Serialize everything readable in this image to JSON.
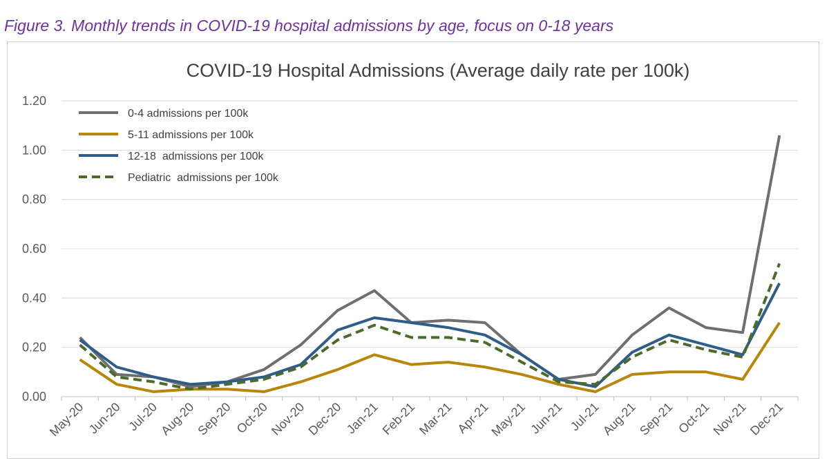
{
  "caption": "Figure 3. Monthly trends in COVID-19 hospital admissions by age, focus on 0-18 years",
  "chart_data": {
    "type": "line",
    "title": "COVID-19 Hospital Admissions (Average daily rate per 100k)",
    "xlabel": "",
    "ylabel": "",
    "ylim": [
      0,
      1.2
    ],
    "yticks": [
      "0.00",
      "0.20",
      "0.40",
      "0.60",
      "0.80",
      "1.00",
      "1.20"
    ],
    "grid": true,
    "legend_position": "top-left",
    "categories": [
      "May-20",
      "Jun-20",
      "Jul-20",
      "Aug-20",
      "Sep-20",
      "Oct-20",
      "Nov-20",
      "Dec-20",
      "Jan-21",
      "Feb-21",
      "Mar-21",
      "Apr-21",
      "May-21",
      "Jun-21",
      "Jul-21",
      "Aug-21",
      "Sep-21",
      "Oct-21",
      "Nov-21",
      "Dec-21"
    ],
    "series": [
      {
        "name": "0-4 admissions per 100k",
        "color": "#6f6f6f",
        "dashed": false,
        "values": [
          0.24,
          0.09,
          0.08,
          0.04,
          0.06,
          0.11,
          0.21,
          0.35,
          0.43,
          0.3,
          0.31,
          0.3,
          0.17,
          0.07,
          0.09,
          0.25,
          0.36,
          0.28,
          0.26,
          1.06
        ]
      },
      {
        "name": "5-11 admissions per 100k",
        "color": "#b8860b",
        "dashed": false,
        "values": [
          0.15,
          0.05,
          0.02,
          0.03,
          0.03,
          0.02,
          0.06,
          0.11,
          0.17,
          0.13,
          0.14,
          0.12,
          0.09,
          0.05,
          0.02,
          0.09,
          0.1,
          0.1,
          0.07,
          0.3
        ]
      },
      {
        "name": "12-18  admissions per 100k",
        "color": "#2e5d8a",
        "dashed": false,
        "values": [
          0.23,
          0.12,
          0.08,
          0.05,
          0.06,
          0.08,
          0.13,
          0.27,
          0.32,
          0.3,
          0.28,
          0.25,
          0.17,
          0.07,
          0.04,
          0.18,
          0.25,
          0.21,
          0.17,
          0.46
        ]
      },
      {
        "name": "Pediatric  admissions per 100k",
        "color": "#4a6b2a",
        "dashed": true,
        "values": [
          0.21,
          0.08,
          0.06,
          0.03,
          0.05,
          0.07,
          0.12,
          0.23,
          0.29,
          0.24,
          0.24,
          0.22,
          0.14,
          0.06,
          0.05,
          0.16,
          0.23,
          0.19,
          0.16,
          0.54
        ]
      }
    ]
  }
}
